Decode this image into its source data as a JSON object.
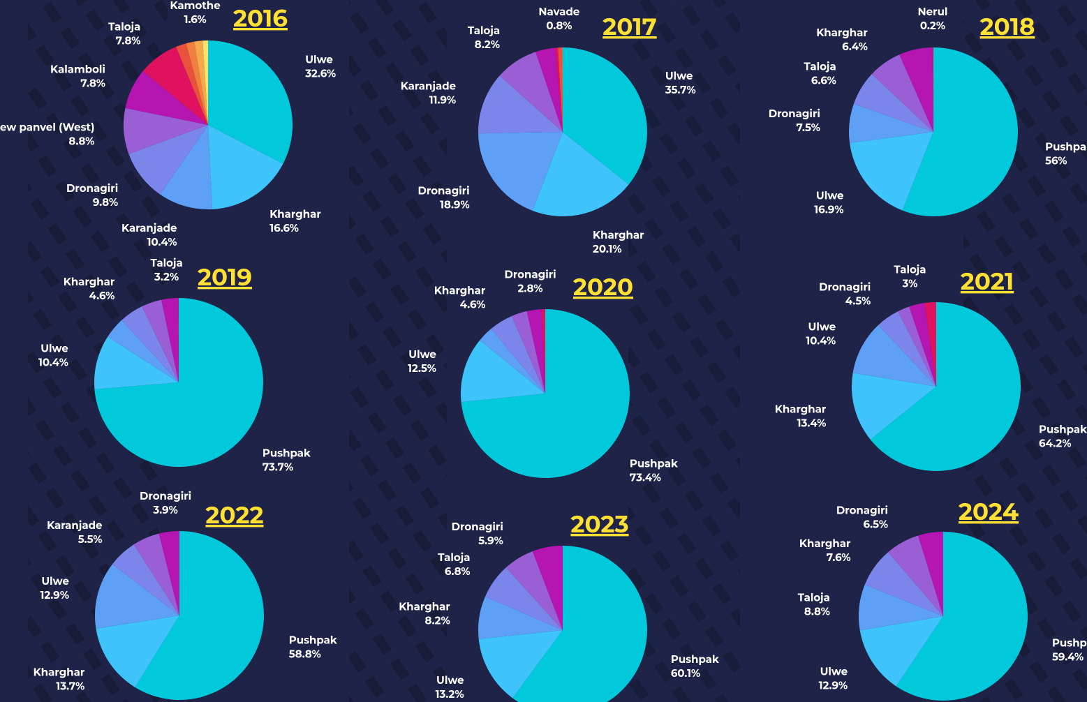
{
  "chart_data": [
    {
      "type": "pie",
      "title": "2016",
      "categories": [
        "Ulwe",
        "Kharghar",
        "Karanjade",
        "Dronagiri",
        "New panvel (West)",
        "Kalamboli",
        "Taloja",
        null,
        null,
        "Kamothe",
        null
      ],
      "values": [
        32.6,
        16.6,
        10.4,
        9.8,
        8.8,
        7.8,
        7.8,
        2.0,
        1.6,
        1.6,
        1.0
      ],
      "value_labels": [
        "32.6%",
        "16.6%",
        "10.4%",
        "9.8%",
        "8.8%",
        "7.8%",
        "7.8%",
        null,
        null,
        "1.6%",
        null
      ],
      "colors": [
        "#00c9dc",
        "#3fc3fb",
        "#5ea0f5",
        "#7b85ea",
        "#9a5fd4",
        "#b515b0",
        "#e0115f",
        "#e8513b",
        "#f1803e",
        "#f6a94c",
        "#fde26a"
      ]
    },
    {
      "type": "pie",
      "title": "2017",
      "categories": [
        "Ulwe",
        "Kharghar",
        "Dronagiri",
        "Karanjade",
        "Taloja",
        null,
        null,
        "Navade",
        null
      ],
      "values": [
        35.7,
        20.1,
        18.9,
        11.9,
        8.2,
        3.8,
        0.5,
        0.8,
        0.1
      ],
      "value_labels": [
        "35.7%",
        "20.1%",
        "18.9%",
        "11.9%",
        "8.2%",
        null,
        null,
        "0.8%",
        null
      ],
      "colors": [
        "#00c9dc",
        "#3fc3fb",
        "#5ea0f5",
        "#7b85ea",
        "#9a5fd4",
        "#b515b0",
        "#e0115f",
        "#e8513b",
        "#f1803e"
      ]
    },
    {
      "type": "pie",
      "title": "2018",
      "categories": [
        "Pushpak",
        "Ulwe",
        "Dronagiri",
        "Taloja",
        "Kharghar",
        null,
        "Nerul"
      ],
      "values": [
        56,
        16.9,
        7.5,
        6.6,
        6.4,
        6.4,
        0.2
      ],
      "value_labels": [
        "56%",
        "16.9%",
        "7.5%",
        "6.6%",
        "6.4%",
        null,
        "0.2%"
      ],
      "colors": [
        "#00c9dc",
        "#3fc3fb",
        "#5ea0f5",
        "#7b85ea",
        "#9a5fd4",
        "#b515b0",
        "#e0115f"
      ]
    },
    {
      "type": "pie",
      "title": "2019",
      "categories": [
        "Pushpak",
        "Ulwe",
        null,
        "Kharghar",
        null,
        "Taloja",
        null
      ],
      "values": [
        73.7,
        10.4,
        4.1,
        4.6,
        3.9,
        3.2,
        0.1
      ],
      "value_labels": [
        "73.7%",
        "10.4%",
        null,
        "4.6%",
        null,
        "3.2%",
        null
      ],
      "colors": [
        "#00c9dc",
        "#3fc3fb",
        "#5ea0f5",
        "#7b85ea",
        "#9a5fd4",
        "#b515b0",
        "#e0115f"
      ]
    },
    {
      "type": "pie",
      "title": "2020",
      "categories": [
        "Pushpak",
        "Ulwe",
        null,
        "Kharghar",
        null,
        "Dronagiri",
        null
      ],
      "values": [
        73.4,
        12.5,
        3.0,
        4.6,
        3.0,
        2.8,
        0.7
      ],
      "value_labels": [
        "73.4%",
        "12.5%",
        null,
        "4.6%",
        null,
        "2.8%",
        null
      ],
      "colors": [
        "#00c9dc",
        "#3fc3fb",
        "#5ea0f5",
        "#7b85ea",
        "#9a5fd4",
        "#b515b0",
        "#e0115f"
      ]
    },
    {
      "type": "pie",
      "title": "2021",
      "categories": [
        "Pushpak",
        "Kharghar",
        "Ulwe",
        "Dronagiri",
        null,
        "Taloja",
        null
      ],
      "values": [
        64.2,
        13.4,
        10.4,
        4.5,
        2.3,
        3,
        2.2
      ],
      "value_labels": [
        "64.2%",
        "13.4%",
        "10.4%",
        "4.5%",
        null,
        "3%",
        null
      ],
      "colors": [
        "#00c9dc",
        "#3fc3fb",
        "#5ea0f5",
        "#7b85ea",
        "#9a5fd4",
        "#b515b0",
        "#e0115f"
      ]
    },
    {
      "type": "pie",
      "title": "2022",
      "categories": [
        "Pushpak",
        "Kharghar",
        "Ulwe",
        "Karanjade",
        null,
        "Dronagiri"
      ],
      "values": [
        58.8,
        13.7,
        12.9,
        5.5,
        5.2,
        3.9
      ],
      "value_labels": [
        "58.8%",
        "13.7%",
        "12.9%",
        "5.5%",
        null,
        "3.9%"
      ],
      "colors": [
        "#00c9dc",
        "#3fc3fb",
        "#5ea0f5",
        "#7b85ea",
        "#9a5fd4",
        "#b515b0"
      ]
    },
    {
      "type": "pie",
      "title": "2023",
      "categories": [
        "Pushpak",
        "Ulwe",
        "Kharghar",
        "Taloja",
        "Dronagiri",
        null
      ],
      "values": [
        60.1,
        13.2,
        8.2,
        6.8,
        5.9,
        5.8
      ],
      "value_labels": [
        "60.1%",
        "13.2%",
        "8.2%",
        "6.8%",
        "5.9%",
        null
      ],
      "colors": [
        "#00c9dc",
        "#3fc3fb",
        "#5ea0f5",
        "#7b85ea",
        "#9a5fd4",
        "#b515b0"
      ]
    },
    {
      "type": "pie",
      "title": "2024",
      "categories": [
        "Pushpak",
        "Ulwe",
        "Taloja",
        "Kharghar",
        "Dronagiri",
        null
      ],
      "values": [
        59.4,
        12.9,
        8.8,
        7.6,
        6.5,
        4.8
      ],
      "value_labels": [
        "59.4%",
        "12.9%",
        "8.8%",
        "7.6%",
        "6.5%",
        null
      ],
      "colors": [
        "#00c9dc",
        "#3fc3fb",
        "#5ea0f5",
        "#7b85ea",
        "#9a5fd4",
        "#b515b0"
      ]
    }
  ]
}
